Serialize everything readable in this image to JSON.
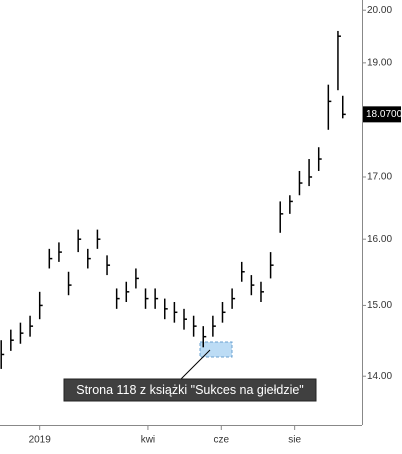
{
  "chart_data": {
    "type": "ohlc",
    "x": [
      -32,
      -24,
      -16,
      -8,
      0,
      8,
      16,
      24,
      32,
      40,
      48,
      56,
      64,
      72,
      80,
      88,
      96,
      104,
      112,
      120,
      128,
      136,
      144,
      152,
      160,
      168,
      176,
      184,
      192,
      200,
      208,
      216,
      224,
      232,
      240,
      248,
      252
    ],
    "high": [
      14.5,
      14.65,
      14.75,
      14.85,
      15.2,
      15.85,
      15.95,
      15.5,
      16.15,
      15.85,
      16.15,
      15.75,
      15.25,
      15.35,
      15.55,
      15.25,
      15.25,
      15.1,
      15.05,
      14.95,
      14.85,
      14.7,
      14.85,
      15.05,
      15.25,
      15.65,
      15.45,
      15.35,
      15.8,
      16.6,
      16.7,
      17.1,
      17.3,
      17.5,
      18.6,
      19.6,
      18.4
    ],
    "low": [
      14.1,
      14.35,
      14.45,
      14.55,
      14.8,
      15.55,
      15.65,
      15.15,
      15.8,
      15.55,
      15.85,
      15.45,
      14.95,
      15.05,
      15.25,
      14.95,
      14.95,
      14.8,
      14.75,
      14.65,
      14.55,
      14.4,
      14.55,
      14.75,
      14.95,
      15.35,
      15.15,
      15.05,
      15.4,
      16.1,
      16.4,
      16.7,
      16.85,
      17.1,
      17.8,
      18.5,
      18.0
    ],
    "close": [
      14.3,
      14.5,
      14.6,
      14.7,
      15.0,
      15.7,
      15.8,
      15.3,
      16.0,
      15.7,
      16.0,
      15.6,
      15.1,
      15.2,
      15.4,
      15.1,
      15.1,
      14.95,
      14.9,
      14.8,
      14.7,
      14.55,
      14.7,
      14.9,
      15.1,
      15.5,
      15.3,
      15.2,
      15.6,
      16.4,
      16.6,
      16.9,
      17.0,
      17.3,
      18.3,
      19.5,
      18.07
    ],
    "color": "#000000",
    "xlim": [
      -33,
      268
    ],
    "xticks": [
      {
        "value": 0,
        "label": "2019"
      },
      {
        "value": 90,
        "label": "kwi"
      },
      {
        "value": 151,
        "label": "cze"
      },
      {
        "value": 212,
        "label": "sie"
      }
    ],
    "ylim": [
      13.35,
      20.2
    ],
    "log_scale": true,
    "yticks": [
      {
        "value": 14,
        "label": "14.00"
      },
      {
        "value": 15,
        "label": "15.00"
      },
      {
        "value": 16,
        "label": "16.00"
      },
      {
        "value": 17,
        "label": "17.00"
      },
      {
        "value": 19,
        "label": "19.00"
      },
      {
        "value": 20,
        "label": "20.00"
      }
    ],
    "last_price": {
      "value": 18.07,
      "label": "18.0700"
    },
    "annotation": "Strona 118 z książki \"Sukces na giełdzie\""
  }
}
